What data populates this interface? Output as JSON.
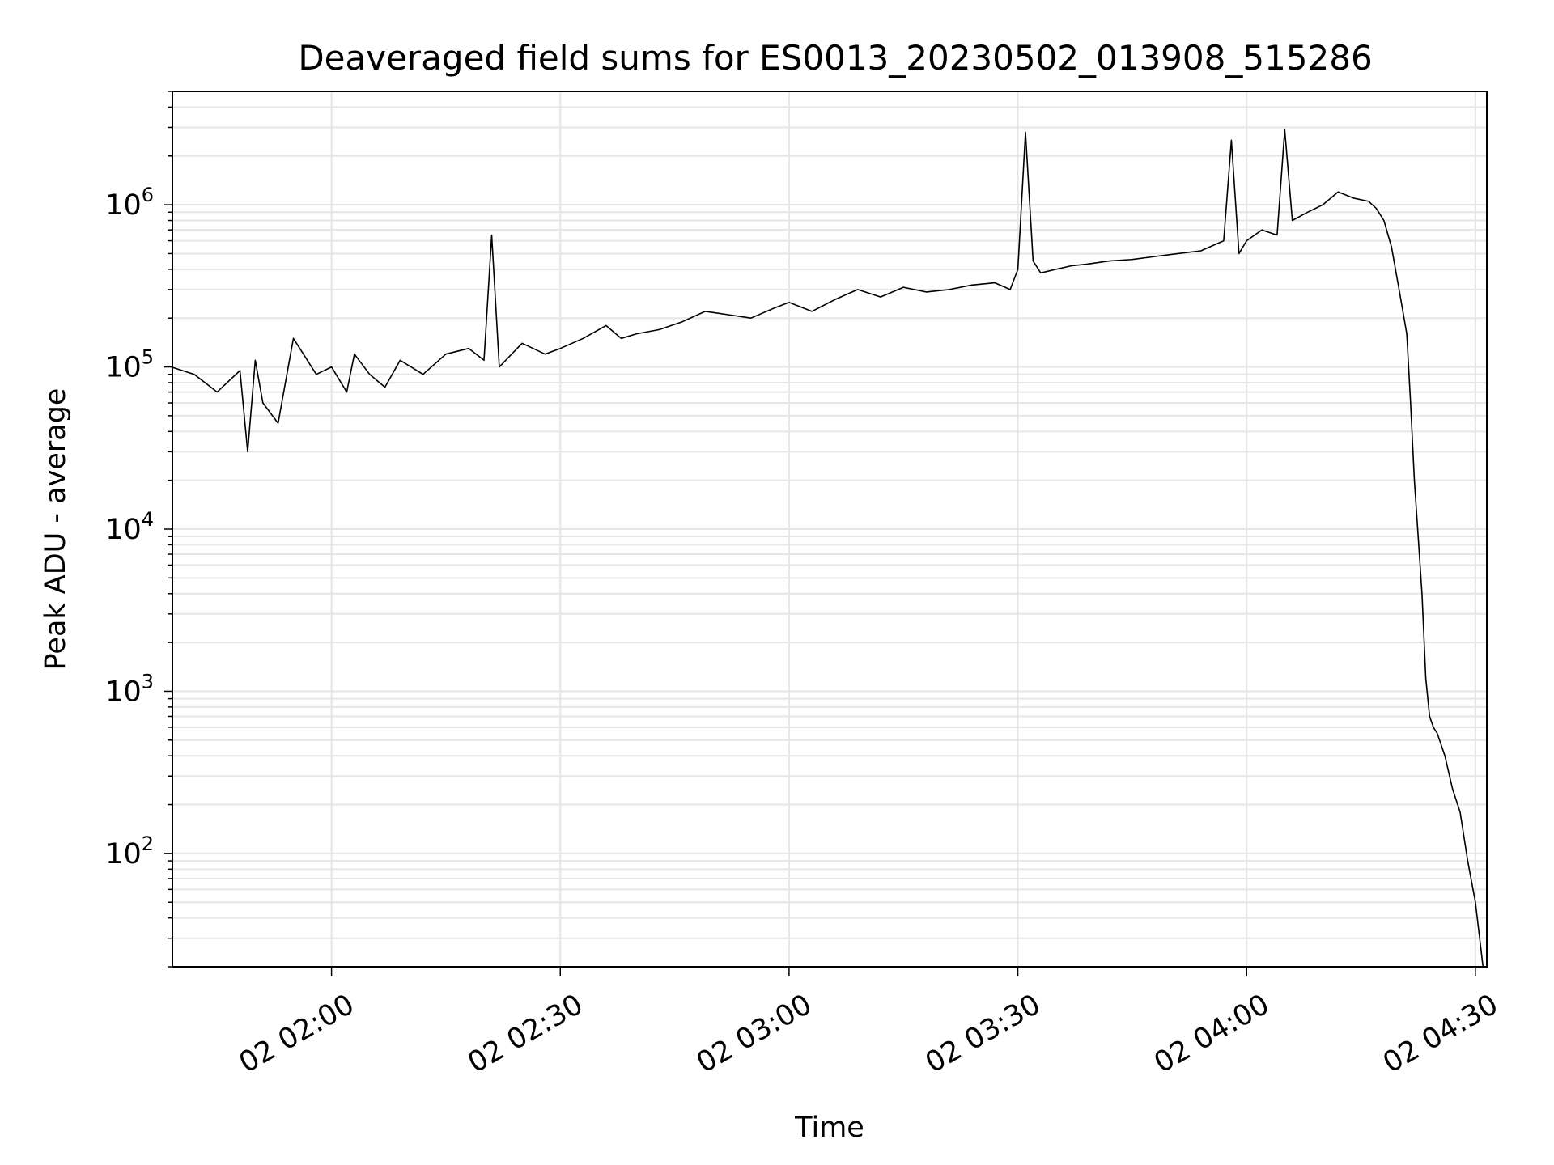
{
  "chart_data": {
    "type": "line",
    "title": "Deaveraged field sums for ES0013_20230502_013908_515286",
    "xlabel": "Time",
    "ylabel": "Peak ADU - average",
    "y_scale": "log",
    "ylim": [
      20,
      5000000
    ],
    "xlim": [
      "2023-05-02 01:39:08",
      "2023-05-02 04:31:30"
    ],
    "grid": true,
    "line_color": "#000000",
    "grid_color": "#e6e6e6",
    "x_ticks": [
      {
        "value": "2023-05-02 02:00",
        "label": "02 02:00"
      },
      {
        "value": "2023-05-02 02:30",
        "label": "02 02:30"
      },
      {
        "value": "2023-05-02 03:00",
        "label": "02 03:00"
      },
      {
        "value": "2023-05-02 03:30",
        "label": "02 03:30"
      },
      {
        "value": "2023-05-02 04:00",
        "label": "02 04:00"
      },
      {
        "value": "2023-05-02 04:30",
        "label": "02 04:30"
      }
    ],
    "y_ticks": [
      {
        "value": 100,
        "base": "10",
        "exp": "2"
      },
      {
        "value": 1000,
        "base": "10",
        "exp": "3"
      },
      {
        "value": 10000,
        "base": "10",
        "exp": "4"
      },
      {
        "value": 100000,
        "base": "10",
        "exp": "5"
      },
      {
        "value": 1000000,
        "base": "10",
        "exp": "6"
      }
    ],
    "series": [
      {
        "x": [
          "2023-05-02 01:39",
          "2023-05-02 01:42",
          "2023-05-02 01:45",
          "2023-05-02 01:48",
          "2023-05-02 01:49",
          "2023-05-02 01:50",
          "2023-05-02 01:51",
          "2023-05-02 01:53",
          "2023-05-02 01:55",
          "2023-05-02 01:58",
          "2023-05-02 02:00",
          "2023-05-02 02:02",
          "2023-05-02 02:03",
          "2023-05-02 02:05",
          "2023-05-02 02:07",
          "2023-05-02 02:09",
          "2023-05-02 02:12",
          "2023-05-02 02:15",
          "2023-05-02 02:18",
          "2023-05-02 02:20",
          "2023-05-02 02:21",
          "2023-05-02 02:22",
          "2023-05-02 02:25",
          "2023-05-02 02:28",
          "2023-05-02 02:30",
          "2023-05-02 02:33",
          "2023-05-02 02:36",
          "2023-05-02 02:38",
          "2023-05-02 02:40",
          "2023-05-02 02:43",
          "2023-05-02 02:46",
          "2023-05-02 02:49",
          "2023-05-02 02:52",
          "2023-05-02 02:55",
          "2023-05-02 02:58",
          "2023-05-02 03:00",
          "2023-05-02 03:03",
          "2023-05-02 03:06",
          "2023-05-02 03:09",
          "2023-05-02 03:12",
          "2023-05-02 03:15",
          "2023-05-02 03:18",
          "2023-05-02 03:21",
          "2023-05-02 03:24",
          "2023-05-02 03:27",
          "2023-05-02 03:29",
          "2023-05-02 03:30",
          "2023-05-02 03:31",
          "2023-05-02 03:32",
          "2023-05-02 03:33",
          "2023-05-02 03:35",
          "2023-05-02 03:37",
          "2023-05-02 03:39",
          "2023-05-02 03:42",
          "2023-05-02 03:45",
          "2023-05-02 03:48",
          "2023-05-02 03:51",
          "2023-05-02 03:54",
          "2023-05-02 03:57",
          "2023-05-02 03:58",
          "2023-05-02 03:59",
          "2023-05-02 04:00",
          "2023-05-02 04:02",
          "2023-05-02 04:04",
          "2023-05-02 04:05",
          "2023-05-02 04:06",
          "2023-05-02 04:08",
          "2023-05-02 04:10",
          "2023-05-02 04:12",
          "2023-05-02 04:14",
          "2023-05-02 04:16",
          "2023-05-02 04:17",
          "2023-05-02 04:18",
          "2023-05-02 04:19",
          "2023-05-02 04:20",
          "2023-05-02 04:21",
          "2023-05-02 04:21:30",
          "2023-05-02 04:22",
          "2023-05-02 04:22:30",
          "2023-05-02 04:23",
          "2023-05-02 04:23:30",
          "2023-05-02 04:24",
          "2023-05-02 04:24:30",
          "2023-05-02 04:25",
          "2023-05-02 04:26",
          "2023-05-02 04:27",
          "2023-05-02 04:28",
          "2023-05-02 04:29",
          "2023-05-02 04:30",
          "2023-05-02 04:31"
        ],
        "y": [
          100000,
          90000,
          70000,
          95000,
          30000,
          110000,
          60000,
          45000,
          150000,
          90000,
          100000,
          70000,
          120000,
          90000,
          75000,
          110000,
          90000,
          120000,
          130000,
          110000,
          650000,
          100000,
          140000,
          120000,
          130000,
          150000,
          180000,
          150000,
          160000,
          170000,
          190000,
          220000,
          210000,
          200000,
          230000,
          250000,
          220000,
          260000,
          300000,
          270000,
          310000,
          290000,
          300000,
          320000,
          330000,
          300000,
          400000,
          2800000,
          450000,
          380000,
          400000,
          420000,
          430000,
          450000,
          460000,
          480000,
          500000,
          520000,
          600000,
          2500000,
          500000,
          600000,
          700000,
          650000,
          2900000,
          800000,
          900000,
          1000000,
          1200000,
          1100000,
          1050000,
          950000,
          800000,
          550000,
          300000,
          160000,
          60000,
          20000,
          9000,
          4000,
          1200,
          700,
          600,
          550,
          400,
          250,
          180,
          90,
          50,
          20
        ],
        "style": "solid"
      }
    ]
  }
}
